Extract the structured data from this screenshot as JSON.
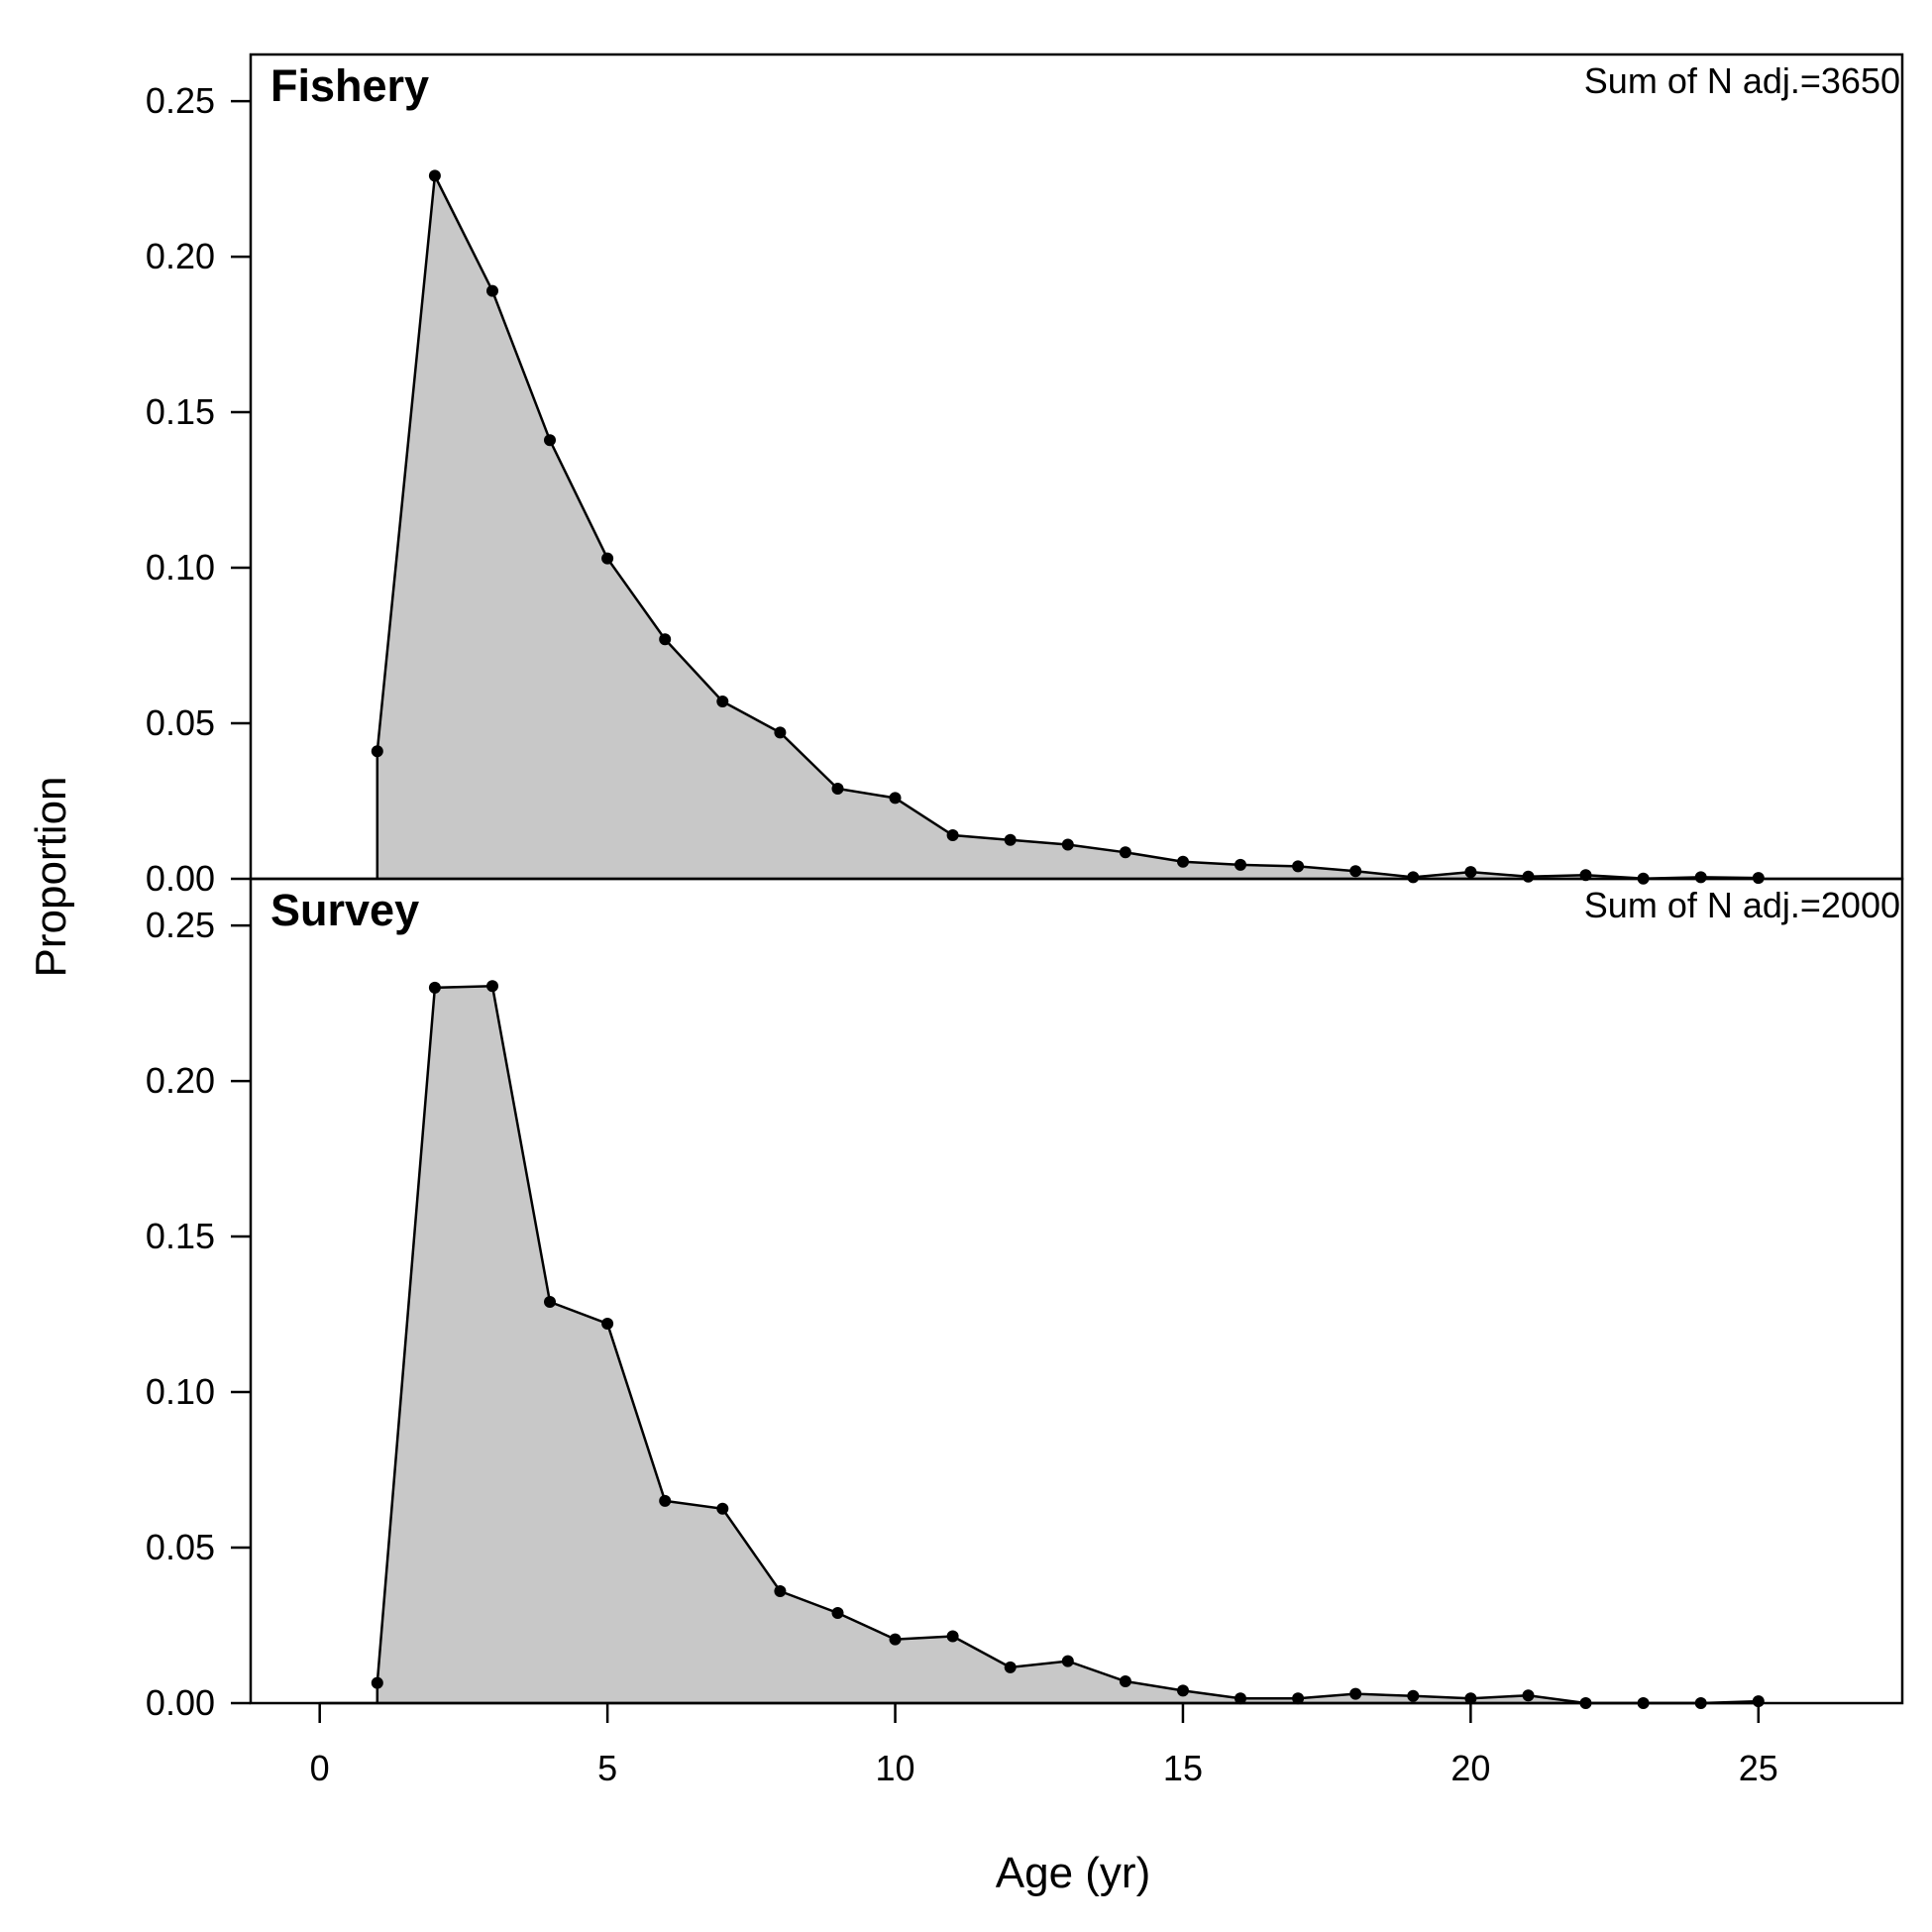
{
  "chart_data": {
    "type": "area",
    "xlabel": "Age (yr)",
    "ylabel": "Proportion",
    "xlim": [
      -1.2,
      27.5
    ],
    "x_ticks": [
      0,
      5,
      10,
      15,
      20,
      25
    ],
    "ylim": [
      0,
      0.265
    ],
    "y_ticks": [
      "0.00",
      "0.05",
      "0.10",
      "0.15",
      "0.20",
      "0.25"
    ],
    "panels": [
      {
        "title": "Fishery",
        "annotation": "Sum of N adj.=3650",
        "x": [
          1,
          2,
          3,
          4,
          5,
          6,
          7,
          8,
          9,
          10,
          11,
          12,
          13,
          14,
          15,
          16,
          17,
          18,
          19,
          20,
          21,
          22,
          23,
          24,
          25
        ],
        "y": [
          0.041,
          0.226,
          0.189,
          0.141,
          0.103,
          0.077,
          0.057,
          0.047,
          0.029,
          0.026,
          0.014,
          0.0125,
          0.011,
          0.0085,
          0.0055,
          0.0045,
          0.004,
          0.0025,
          0.0005,
          0.0022,
          0.0007,
          0.0012,
          0.0001,
          0.0005,
          0.0003
        ]
      },
      {
        "title": "Survey",
        "annotation": "Sum of N adj.=2000",
        "x": [
          1,
          2,
          3,
          4,
          5,
          6,
          7,
          8,
          9,
          10,
          11,
          12,
          13,
          14,
          15,
          16,
          17,
          18,
          19,
          20,
          21,
          22,
          23,
          24,
          25
        ],
        "y": [
          0.0065,
          0.23,
          0.2305,
          0.129,
          0.122,
          0.065,
          0.0625,
          0.036,
          0.029,
          0.0205,
          0.0215,
          0.0115,
          0.0135,
          0.007,
          0.004,
          0.0015,
          0.0015,
          0.003,
          0.0023,
          0.0015,
          0.0025,
          0.0,
          0.0,
          0.0,
          0.0006
        ]
      }
    ],
    "fill_color": "#c8c8c8",
    "line_color": "#000000",
    "grid": false
  }
}
